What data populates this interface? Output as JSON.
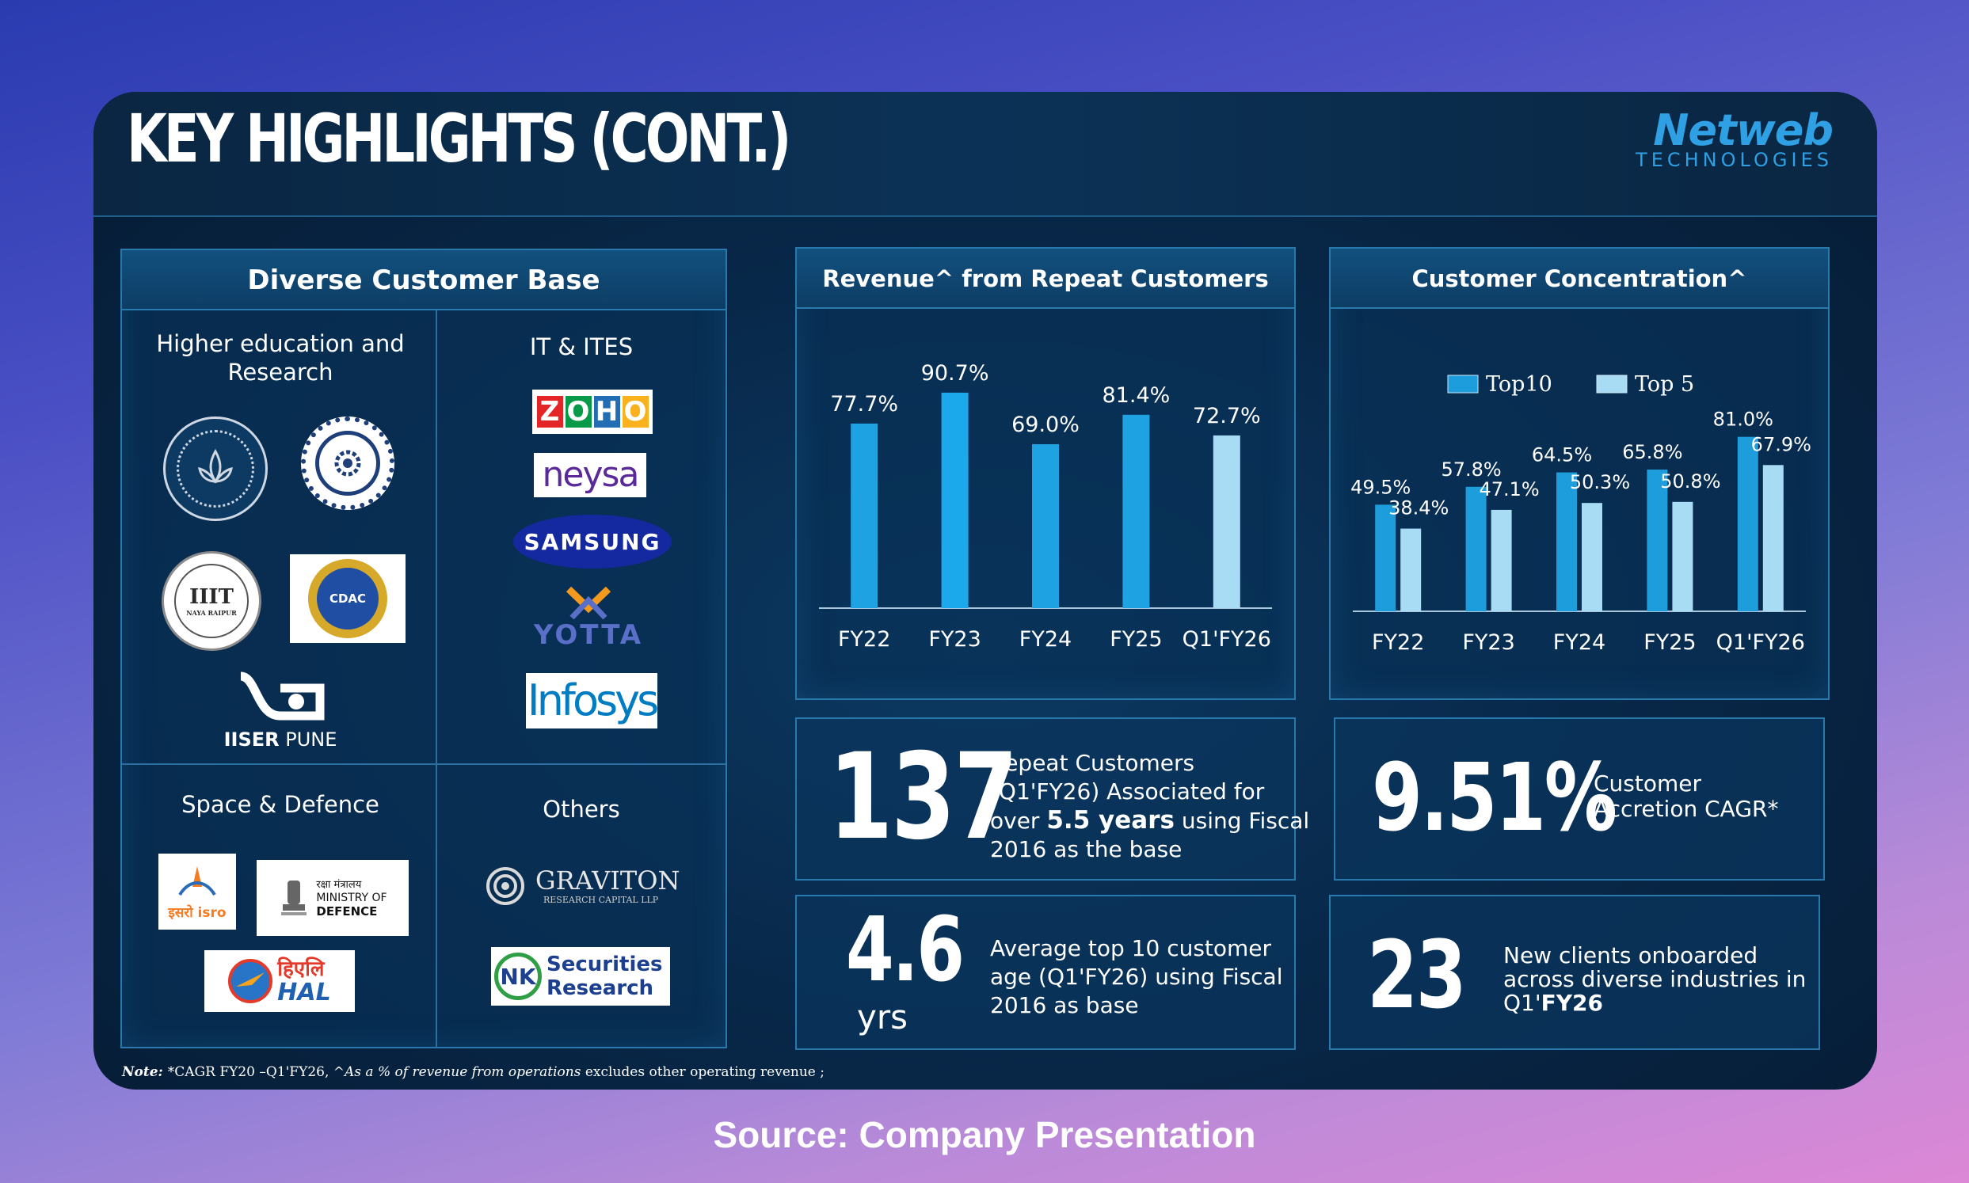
{
  "slide": {
    "title": "KEY HIGHLIGHTS (CONT.)",
    "logo": {
      "name": "Netweb",
      "sub": "TECHNOLOGIES"
    }
  },
  "customer_base": {
    "title": "Diverse Customer Base",
    "higher_ed": {
      "title": "Higher education and Research",
      "logos": [
        "IIT Kharagpur",
        "IIT Delhi",
        "IIIT Naya Raipur",
        "C-DAC",
        "IISER PUNE"
      ],
      "iiit_text": "IIIT",
      "iiit_sub": "NAYA RAIPUR",
      "cdac_text": "CDAC",
      "iiser_text": "IISER",
      "iiser_sub": "PUNE"
    },
    "it_ites": {
      "title": "IT & ITES",
      "logos": [
        "ZOHO",
        "neysa",
        "SAMSUNG",
        "YOTTA",
        "Infosys"
      ]
    },
    "space_defence": {
      "title": "Space & Defence",
      "isro_text": "इसरो isro",
      "mod_line1": "रक्षा मंत्रालय",
      "mod_line2": "MINISTRY OF",
      "mod_line3": "DEFENCE",
      "hal_hindi": "हिएलि",
      "hal_text": "HAL"
    },
    "others": {
      "title": "Others",
      "graviton_name": "GRAVITON",
      "graviton_sub": "RESEARCH CAPITAL LLP",
      "nk_badge": "NK",
      "nk_line1": "Securities",
      "nk_line2": "Research"
    }
  },
  "repeat_chart_title": "Revenue^ from Repeat Customers",
  "concentration_chart_title": "Customer Concentration^",
  "chart_data": [
    {
      "type": "bar",
      "title": "Revenue^ from Repeat Customers",
      "categories": [
        "FY22",
        "FY23",
        "FY24",
        "FY25",
        "Q1'FY26"
      ],
      "values": [
        77.7,
        90.7,
        69.0,
        81.4,
        72.7
      ],
      "labels": [
        "77.7%",
        "90.7%",
        "69.0%",
        "81.4%",
        "72.7%"
      ],
      "colors": [
        "#1ea2e2",
        "#1ba9ec",
        "#1ea2e2",
        "#1ea2e2",
        "#a8dcf4"
      ],
      "ylim": [
        0,
        100
      ],
      "grid": false
    },
    {
      "type": "bar",
      "title": "Customer Concentration^",
      "categories": [
        "FY22",
        "FY23",
        "FY24",
        "FY25",
        "Q1'FY26"
      ],
      "series": [
        {
          "name": "Top10",
          "values": [
            49.5,
            57.8,
            64.5,
            65.8,
            81.0
          ],
          "labels": [
            "49.5%",
            "57.8%",
            "64.5%",
            "65.8%",
            "81.0%"
          ],
          "color": "#1e9ddc"
        },
        {
          "name": "Top 5",
          "values": [
            38.4,
            47.1,
            50.3,
            50.8,
            67.9
          ],
          "labels": [
            "38.4%",
            "47.1%",
            "50.3%",
            "50.8%",
            "67.9%"
          ],
          "color": "#a8dcf4"
        }
      ],
      "legend": "top",
      "ylim": [
        0,
        100
      ],
      "grid": false
    }
  ],
  "stats": {
    "repeat": {
      "value": "137",
      "line1": "Repeat Customers",
      "line2": "(Q1'FY26) Associated for",
      "line3a": "over ",
      "line3b": "5.5 years",
      "line3c": " using Fiscal",
      "line4": "2016 as the base"
    },
    "cagr": {
      "value": "9.51%",
      "line1": "Customer",
      "line2": "Accretion CAGR*"
    },
    "age": {
      "value": "4.6",
      "unit": "yrs",
      "line1": "Average top 10 customer",
      "line2": "age (Q1'FY26) using Fiscal",
      "line3": "2016 as base"
    },
    "new_clients": {
      "value": "23",
      "line1": "New clients onboarded",
      "line2": "across diverse industries in",
      "line3a": "Q1'",
      "line3b": "FY26"
    }
  },
  "footnote": {
    "a": "Note: ",
    "b": "*CAGR FY20 –Q1'FY26, ",
    "c": "^As a % of revenue from operations",
    "d": " excludes other operating revenue ;"
  },
  "source": "Source: Company Presentation"
}
